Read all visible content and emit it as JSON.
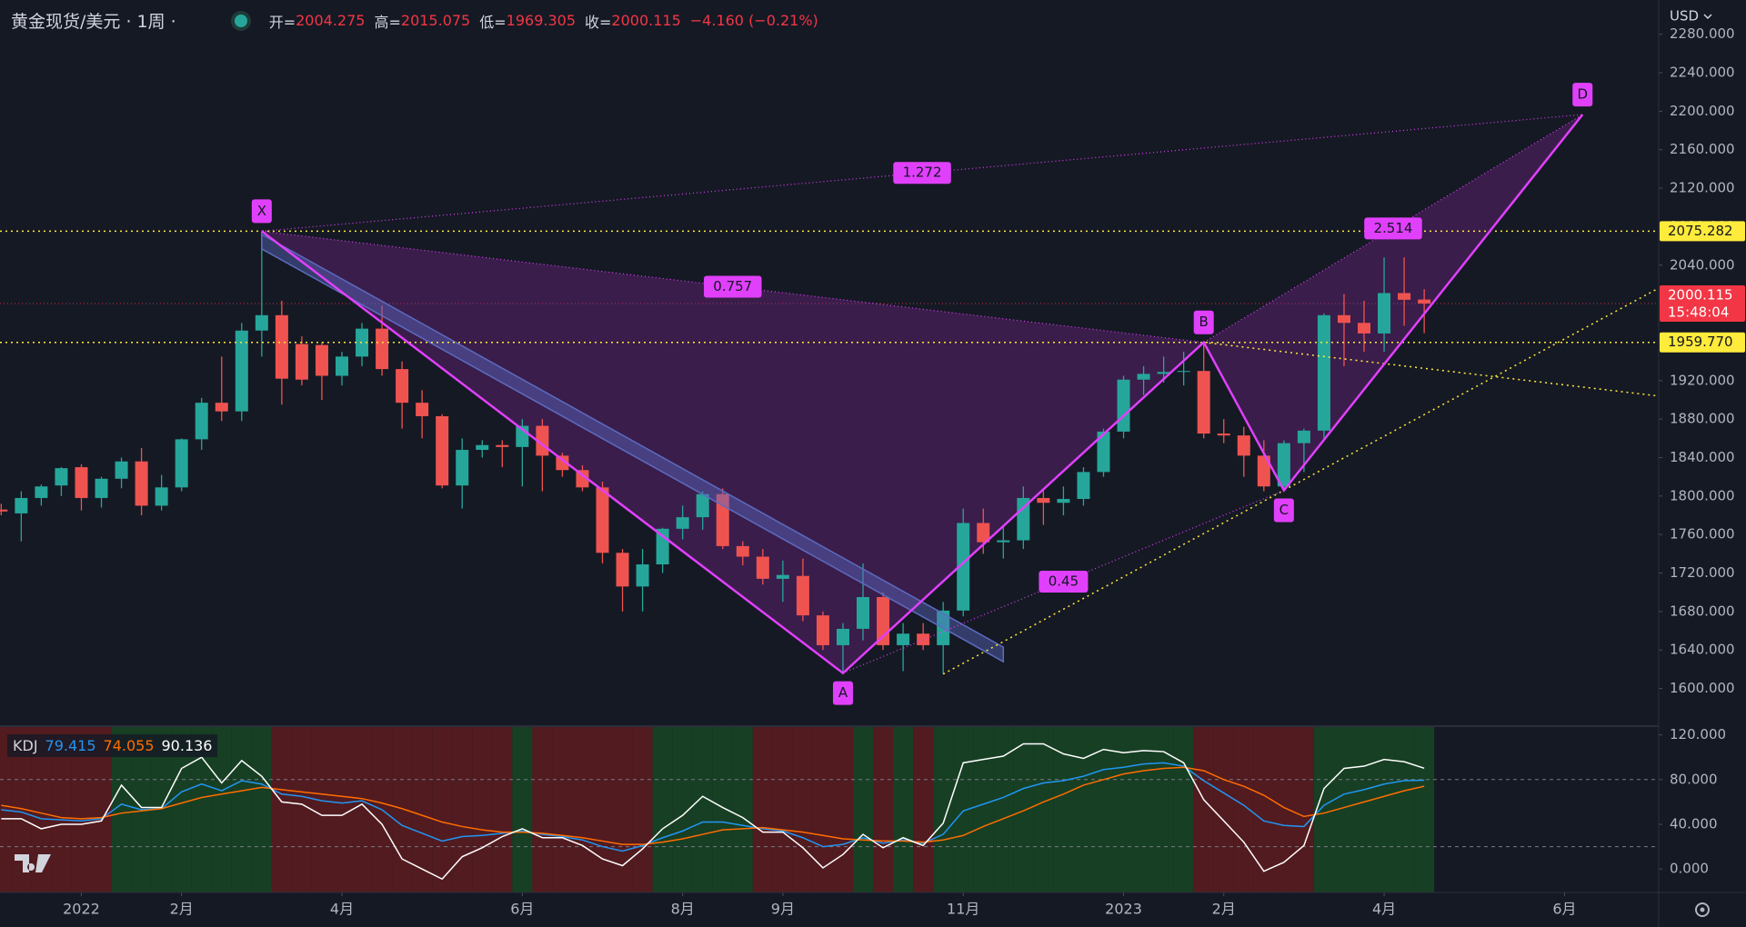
{
  "header": {
    "symbol": "黄金现货/美元 · 1周 ·",
    "open_label": "开=",
    "high_label": "高=",
    "low_label": "低=",
    "close_label": "收=",
    "change": "−4.160 (−0.21%)",
    "currency": "USD"
  },
  "chart_data": [
    {
      "type": "candlestick",
      "x": [
        0,
        1,
        2,
        3,
        4,
        5,
        6,
        7,
        8,
        9,
        10,
        11,
        12,
        13,
        14,
        15,
        16,
        17,
        18,
        19,
        20,
        21,
        22,
        23,
        24,
        25,
        26,
        27,
        28,
        29,
        30,
        31,
        32,
        33,
        34,
        35,
        36,
        37,
        38,
        39,
        40,
        41,
        42,
        43,
        44,
        45,
        46,
        47,
        48,
        49,
        50,
        51,
        52,
        53,
        54,
        55,
        56,
        57,
        58,
        59,
        60,
        61,
        62,
        63,
        64,
        65,
        66,
        67,
        68,
        69,
        70,
        71
      ],
      "open": [
        1786,
        1782,
        1798,
        1811,
        1830,
        1798,
        1818,
        1836,
        1790,
        1809,
        1859,
        1897,
        1888,
        1972,
        1988,
        1958,
        1957,
        1925,
        1945,
        1974,
        1932,
        1897,
        1883,
        1811,
        1848,
        1853,
        1851,
        1873,
        1842,
        1827,
        1809,
        1741,
        1706,
        1729,
        1766,
        1778,
        1802,
        1748,
        1737,
        1714,
        1717,
        1676,
        1645,
        1662,
        1695,
        1645,
        1657,
        1645,
        1681,
        1772,
        1752,
        1754,
        1798,
        1793,
        1797,
        1825,
        1867,
        1921,
        1927,
        1929,
        1930,
        1865,
        1863,
        1842,
        1810,
        1855,
        1868,
        1988,
        1980,
        1969,
        2011,
        2004.275
      ],
      "high": [
        1792,
        1805,
        1812,
        1830,
        1833,
        1820,
        1840,
        1850,
        1822,
        1860,
        1902,
        1945,
        1980,
        2075.282,
        2003,
        1966,
        1960,
        1950,
        1980,
        1998,
        1940,
        1910,
        1885,
        1860,
        1858,
        1858,
        1880,
        1880,
        1845,
        1832,
        1815,
        1745,
        1745,
        1767,
        1790,
        1805,
        1808,
        1753,
        1745,
        1733,
        1735,
        1680,
        1668,
        1730,
        1700,
        1668,
        1668,
        1690,
        1787,
        1787,
        1770,
        1810,
        1808,
        1810,
        1830,
        1870,
        1925,
        1935,
        1945,
        1950,
        1959.77,
        1880,
        1872,
        1858,
        1858,
        1870,
        1990,
        2010,
        2003,
        2048,
        2048,
        2015.075
      ],
      "low": [
        1780,
        1753,
        1790,
        1800,
        1785,
        1788,
        1808,
        1780,
        1785,
        1805,
        1848,
        1878,
        1878,
        1945,
        1895,
        1915,
        1900,
        1915,
        1935,
        1925,
        1870,
        1860,
        1808,
        1787,
        1840,
        1830,
        1810,
        1805,
        1820,
        1805,
        1730,
        1680,
        1680,
        1720,
        1755,
        1765,
        1745,
        1728,
        1708,
        1690,
        1670,
        1640,
        1616,
        1650,
        1640,
        1618,
        1640,
        1615,
        1675,
        1740,
        1735,
        1745,
        1770,
        1780,
        1790,
        1820,
        1860,
        1905,
        1918,
        1915,
        1860,
        1855,
        1820,
        1805,
        1806,
        1825,
        1860,
        1935,
        1950,
        1950,
        1977,
        1969.305
      ],
      "close": [
        1784,
        1798,
        1810,
        1829,
        1798,
        1818,
        1836,
        1790,
        1809,
        1859,
        1897,
        1888,
        1972,
        1988,
        1922,
        1921,
        1925,
        1945,
        1974,
        1932,
        1897,
        1883,
        1811,
        1848,
        1853,
        1851,
        1873,
        1842,
        1827,
        1809,
        1741,
        1706,
        1729,
        1766,
        1778,
        1802,
        1748,
        1737,
        1714,
        1718,
        1676,
        1645,
        1662,
        1695,
        1645,
        1657,
        1645,
        1681,
        1772,
        1752,
        1754,
        1798,
        1793,
        1797,
        1825,
        1867,
        1921,
        1927,
        1929,
        1930,
        1865,
        1863,
        1842,
        1810,
        1855,
        1868,
        1988,
        1980,
        1969,
        2011,
        2004,
        2000.115
      ],
      "up_color": "#26a69a",
      "down_color": "#ef5350",
      "xlim": [
        -0.06,
        82.7
      ],
      "ylim": [
        1561.8,
        2315.6
      ],
      "xticks": [
        {
          "value": 4,
          "label": "2022"
        },
        {
          "value": 9,
          "label": "2月"
        },
        {
          "value": 17,
          "label": "4月"
        },
        {
          "value": 26,
          "label": "6月"
        },
        {
          "value": 34,
          "label": "8月"
        },
        {
          "value": 39,
          "label": "9月"
        },
        {
          "value": 48,
          "label": "11月"
        },
        {
          "value": 56,
          "label": "2023"
        },
        {
          "value": 61,
          "label": "2月"
        },
        {
          "value": 69,
          "label": "4月"
        },
        {
          "value": 78,
          "label": "6月"
        }
      ],
      "yticks": [
        {
          "value": 1600,
          "label": "1600.000"
        },
        {
          "value": 1640,
          "label": "1640.000"
        },
        {
          "value": 1680,
          "label": "1680.000"
        },
        {
          "value": 1720,
          "label": "1720.000"
        },
        {
          "value": 1760,
          "label": "1760.000"
        },
        {
          "value": 1800,
          "label": "1800.000"
        },
        {
          "value": 1840,
          "label": "1840.000"
        },
        {
          "value": 1880,
          "label": "1880.000"
        },
        {
          "value": 1920,
          "label": "1920.000"
        },
        {
          "value": 1960,
          "label": "1960.000"
        },
        {
          "value": 2000,
          "label": "2000.000"
        },
        {
          "value": 2040,
          "label": "2040.000"
        },
        {
          "value": 2080,
          "label": "2080.000"
        },
        {
          "value": 2120,
          "label": "2120.000"
        },
        {
          "value": 2160,
          "label": "2160.000"
        },
        {
          "value": 2200,
          "label": "2200.000"
        },
        {
          "value": 2240,
          "label": "2240.000"
        },
        {
          "value": 2280,
          "label": "2280.000"
        }
      ],
      "grid": false,
      "price_lines": [
        {
          "value": 2075.282,
          "label": "2075.282"
        },
        {
          "value": 1959.77,
          "label": "1959.770"
        }
      ],
      "price_line_color": "#ffeb3b",
      "countdown": "15:48:04",
      "last_color": "#f23645",
      "pattern": {
        "names": [
          "X",
          "A",
          "B",
          "C",
          "D"
        ],
        "x": [
          13,
          42,
          60,
          64,
          78.9
        ],
        "y": [
          2075.282,
          1616,
          1959.77,
          1806,
          2196.5
        ],
        "ratios": [
          0.757,
          0.45,
          1.272,
          2.514
        ],
        "color": "#e040fb"
      },
      "trend_channel": {
        "x": [
          13,
          50
        ],
        "y": [
          2072,
          1643
        ],
        "color": "#5c6bc0"
      }
    },
    {
      "type": "line",
      "title": "KDJ",
      "series": [
        {
          "color": "#2196f3",
          "values": [
            53,
            51,
            45,
            44,
            43,
            45,
            58,
            53,
            54,
            69,
            76,
            70,
            79,
            76,
            67,
            65,
            61,
            59,
            61,
            53,
            39,
            32,
            25,
            29,
            30,
            32,
            34,
            31,
            29,
            26,
            20,
            16,
            21,
            28,
            34,
            42,
            42,
            39,
            36,
            34,
            28,
            20,
            22,
            28,
            23,
            26,
            23,
            31,
            52,
            58,
            64,
            72,
            77,
            79,
            83,
            89,
            91,
            94,
            95,
            92,
            79,
            68,
            57,
            43,
            39,
            38,
            57,
            67,
            71,
            76,
            79,
            79.415
          ]
        },
        {
          "color": "#ff6d00",
          "values": [
            57,
            54,
            50,
            46,
            45,
            46,
            50,
            52,
            54,
            59,
            64,
            67,
            70,
            73,
            71,
            69,
            67,
            65,
            63,
            59,
            54,
            48,
            42,
            38,
            35,
            33,
            33,
            32,
            30,
            28,
            25,
            22,
            22,
            24,
            27,
            31,
            35,
            36,
            37,
            35,
            33,
            30,
            27,
            26,
            25,
            25,
            24,
            26,
            30,
            38,
            45,
            52,
            60,
            67,
            75,
            80,
            85,
            88,
            90,
            91,
            88,
            80,
            74,
            66,
            55,
            47,
            50,
            55,
            60,
            65,
            70,
            74.055
          ]
        },
        {
          "color": "#ffffff",
          "values": [
            45,
            45,
            36,
            40,
            40,
            43,
            75,
            55,
            55,
            90,
            100,
            77,
            97,
            83,
            60,
            58,
            48,
            48,
            58,
            40,
            9,
            0,
            -9,
            11,
            19,
            29,
            36,
            28,
            28,
            21,
            9,
            3,
            18,
            36,
            48,
            65,
            55,
            46,
            33,
            33,
            19,
            1,
            13,
            31,
            19,
            28,
            21,
            41,
            95,
            98,
            101,
            112,
            112,
            103,
            99,
            107,
            104,
            106,
            105,
            95,
            62,
            43,
            24,
            -2,
            6,
            21,
            72,
            90,
            92,
            98,
            96,
            90.136
          ]
        }
      ],
      "ylim": [
        -21,
        127
      ],
      "yticks": [
        {
          "value": 0,
          "label": "0.000"
        },
        {
          "value": 40,
          "label": "40.000"
        },
        {
          "value": 80,
          "label": "80.000"
        },
        {
          "value": 120,
          "label": "120.000"
        }
      ],
      "levels": [
        80,
        20
      ],
      "zone_colors": {
        "up": "#173f24",
        "down": "#521b20"
      }
    }
  ]
}
